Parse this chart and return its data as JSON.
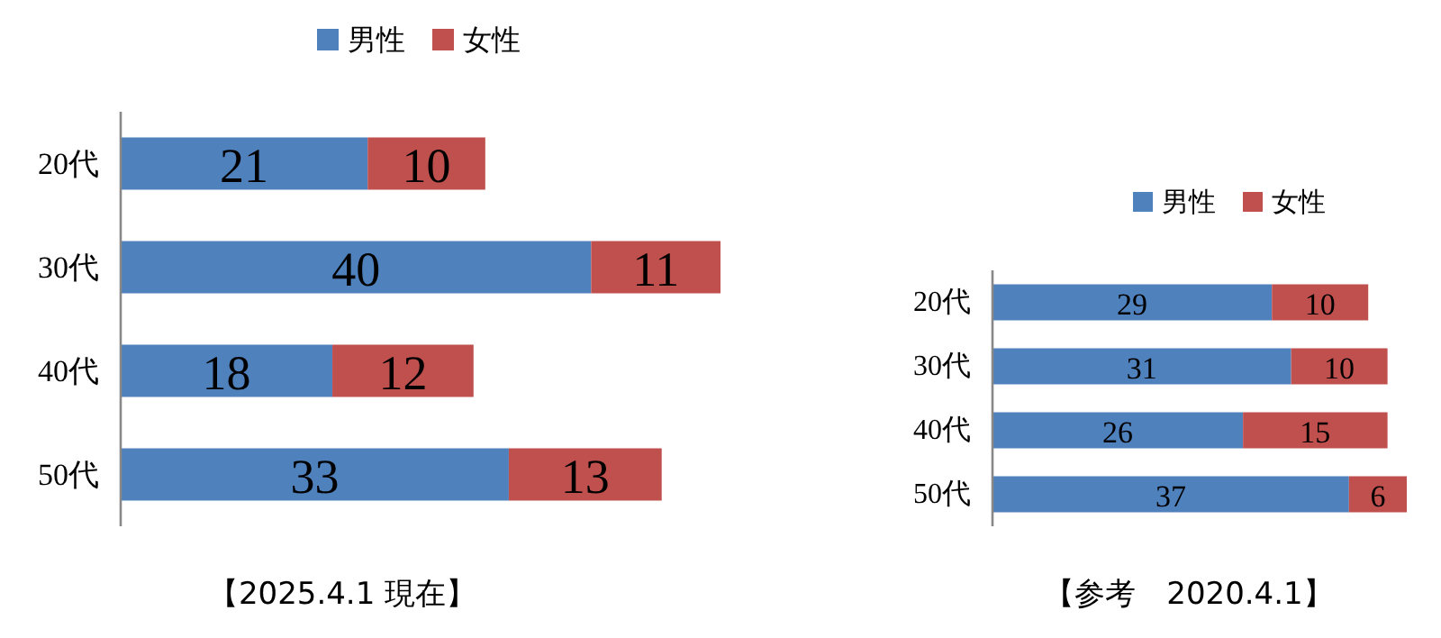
{
  "chart_data": [
    {
      "type": "bar",
      "orientation": "horizontal",
      "stacked": true,
      "categories": [
        "20代",
        "30代",
        "40代",
        "50代"
      ],
      "series": [
        {
          "name": "男性",
          "color": "#4f81bd",
          "values": [
            21,
            40,
            18,
            33
          ]
        },
        {
          "name": "女性",
          "color": "#c0504d",
          "values": [
            10,
            11,
            12,
            13
          ]
        }
      ],
      "legend": "top",
      "data_labels": true,
      "annotations": [
        "【2025.4.1 現在】"
      ]
    },
    {
      "type": "bar",
      "orientation": "horizontal",
      "stacked": true,
      "categories": [
        "20代",
        "30代",
        "40代",
        "50代"
      ],
      "series": [
        {
          "name": "男性",
          "color": "#4f81bd",
          "values": [
            29,
            31,
            26,
            37
          ]
        },
        {
          "name": "女性",
          "color": "#c0504d",
          "values": [
            10,
            10,
            15,
            6
          ]
        }
      ],
      "legend": "top",
      "data_labels": true,
      "annotations": [
        "【参考　2020.4.1】"
      ]
    }
  ]
}
